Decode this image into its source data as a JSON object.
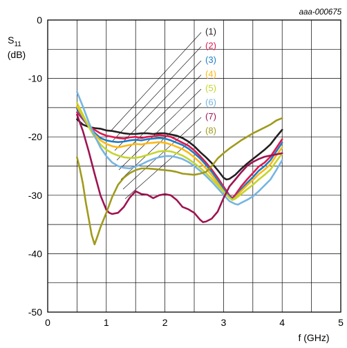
{
  "chart_data": {
    "type": "line",
    "id_label": "aaa-000675",
    "xlabel": "f (GHz)",
    "ylabel_main": "S",
    "ylabel_sub": "11",
    "ylabel_unit": "(dB)",
    "xlim": [
      0,
      5
    ],
    "ylim": [
      -50,
      0
    ],
    "x_ticks": [
      0,
      1,
      2,
      3,
      4,
      5
    ],
    "y_ticks": [
      0,
      -10,
      -20,
      -30,
      -40,
      -50
    ],
    "x_tick_labels": [
      "0",
      "1",
      "2",
      "3",
      "4",
      "5"
    ],
    "y_tick_labels": [
      "0",
      "-10",
      "-20",
      "-30",
      "-40",
      "-50"
    ],
    "grid": true,
    "series": [
      {
        "name": "(1)",
        "color": "#231f20",
        "points": [
          [
            0.5,
            -17.0
          ],
          [
            0.6,
            -17.9
          ],
          [
            0.7,
            -18.3
          ],
          [
            0.8,
            -18.5
          ],
          [
            0.9,
            -18.6
          ],
          [
            1.0,
            -18.9
          ],
          [
            1.1,
            -19.0
          ],
          [
            1.2,
            -19.2
          ],
          [
            1.3,
            -19.4
          ],
          [
            1.4,
            -19.5
          ],
          [
            1.5,
            -19.5
          ],
          [
            1.6,
            -19.4
          ],
          [
            1.7,
            -19.4
          ],
          [
            1.8,
            -19.5
          ],
          [
            1.9,
            -19.4
          ],
          [
            2.0,
            -19.4
          ],
          [
            2.1,
            -19.6
          ],
          [
            2.2,
            -19.8
          ],
          [
            2.3,
            -20.2
          ],
          [
            2.4,
            -20.8
          ],
          [
            2.5,
            -21.6
          ],
          [
            2.6,
            -22.6
          ],
          [
            2.7,
            -23.5
          ],
          [
            2.8,
            -24.5
          ],
          [
            2.9,
            -25.7
          ],
          [
            3.0,
            -27.0
          ],
          [
            3.05,
            -27.3
          ],
          [
            3.1,
            -27.2
          ],
          [
            3.2,
            -26.5
          ],
          [
            3.3,
            -25.5
          ],
          [
            3.4,
            -24.6
          ],
          [
            3.5,
            -23.8
          ],
          [
            3.6,
            -23.0
          ],
          [
            3.7,
            -22.2
          ],
          [
            3.8,
            -21.3
          ],
          [
            3.9,
            -20.0
          ],
          [
            4.0,
            -18.8
          ]
        ]
      },
      {
        "name": "(2)",
        "color": "#e0184f",
        "points": [
          [
            0.5,
            -15.8
          ],
          [
            0.6,
            -17.0
          ],
          [
            0.7,
            -18.2
          ],
          [
            0.8,
            -18.8
          ],
          [
            0.9,
            -19.4
          ],
          [
            1.0,
            -19.8
          ],
          [
            1.1,
            -20.0
          ],
          [
            1.2,
            -20.2
          ],
          [
            1.3,
            -20.3
          ],
          [
            1.4,
            -20.1
          ],
          [
            1.5,
            -20.0
          ],
          [
            1.6,
            -20.2
          ],
          [
            1.7,
            -20.0
          ],
          [
            1.8,
            -19.9
          ],
          [
            1.9,
            -19.7
          ],
          [
            2.0,
            -19.8
          ],
          [
            2.1,
            -20.0
          ],
          [
            2.2,
            -20.5
          ],
          [
            2.3,
            -21.0
          ],
          [
            2.4,
            -21.5
          ],
          [
            2.5,
            -22.3
          ],
          [
            2.6,
            -23.3
          ],
          [
            2.7,
            -24.4
          ],
          [
            2.8,
            -25.6
          ],
          [
            2.9,
            -27.0
          ],
          [
            3.0,
            -28.5
          ],
          [
            3.1,
            -30.0
          ],
          [
            3.15,
            -30.5
          ],
          [
            3.2,
            -29.9
          ],
          [
            3.3,
            -28.5
          ],
          [
            3.4,
            -27.3
          ],
          [
            3.5,
            -26.2
          ],
          [
            3.6,
            -25.1
          ],
          [
            3.7,
            -24.4
          ],
          [
            3.8,
            -23.4
          ],
          [
            3.9,
            -21.9
          ],
          [
            4.0,
            -20.4
          ]
        ]
      },
      {
        "name": "(3)",
        "color": "#1e7ec2",
        "points": [
          [
            0.5,
            -15.2
          ],
          [
            0.6,
            -16.8
          ],
          [
            0.7,
            -18.2
          ],
          [
            0.8,
            -19.3
          ],
          [
            0.9,
            -20.2
          ],
          [
            1.0,
            -20.6
          ],
          [
            1.1,
            -20.8
          ],
          [
            1.2,
            -20.9
          ],
          [
            1.3,
            -20.8
          ],
          [
            1.4,
            -20.6
          ],
          [
            1.5,
            -20.5
          ],
          [
            1.6,
            -20.6
          ],
          [
            1.7,
            -20.4
          ],
          [
            1.8,
            -20.3
          ],
          [
            1.9,
            -20.2
          ],
          [
            2.0,
            -20.3
          ],
          [
            2.1,
            -20.6
          ],
          [
            2.2,
            -21.0
          ],
          [
            2.3,
            -21.4
          ],
          [
            2.4,
            -22.0
          ],
          [
            2.5,
            -22.8
          ],
          [
            2.6,
            -23.7
          ],
          [
            2.7,
            -24.8
          ],
          [
            2.8,
            -26.0
          ],
          [
            2.9,
            -27.4
          ],
          [
            3.0,
            -28.9
          ],
          [
            3.1,
            -30.2
          ],
          [
            3.15,
            -30.7
          ],
          [
            3.2,
            -30.3
          ],
          [
            3.3,
            -29.0
          ],
          [
            3.4,
            -27.9
          ],
          [
            3.5,
            -26.9
          ],
          [
            3.6,
            -25.8
          ],
          [
            3.7,
            -25.0
          ],
          [
            3.8,
            -24.0
          ],
          [
            3.9,
            -22.5
          ],
          [
            4.0,
            -21.0
          ]
        ]
      },
      {
        "name": "(4)",
        "color": "#fdb913",
        "points": [
          [
            0.5,
            -14.8
          ],
          [
            0.6,
            -16.5
          ],
          [
            0.7,
            -18.2
          ],
          [
            0.8,
            -19.6
          ],
          [
            0.9,
            -20.6
          ],
          [
            1.0,
            -21.2
          ],
          [
            1.1,
            -21.6
          ],
          [
            1.2,
            -21.8
          ],
          [
            1.3,
            -21.6
          ],
          [
            1.4,
            -21.4
          ],
          [
            1.5,
            -21.2
          ],
          [
            1.6,
            -21.3
          ],
          [
            1.7,
            -21.1
          ],
          [
            1.8,
            -21.0
          ],
          [
            1.9,
            -20.9
          ],
          [
            2.0,
            -21.0
          ],
          [
            2.1,
            -21.3
          ],
          [
            2.2,
            -21.7
          ],
          [
            2.3,
            -22.1
          ],
          [
            2.4,
            -22.7
          ],
          [
            2.5,
            -23.5
          ],
          [
            2.6,
            -24.4
          ],
          [
            2.7,
            -25.4
          ],
          [
            2.8,
            -26.6
          ],
          [
            2.9,
            -27.9
          ],
          [
            3.0,
            -29.3
          ],
          [
            3.1,
            -30.4
          ],
          [
            3.15,
            -30.8
          ],
          [
            3.2,
            -30.4
          ],
          [
            3.3,
            -29.3
          ],
          [
            3.4,
            -28.3
          ],
          [
            3.5,
            -27.4
          ],
          [
            3.6,
            -26.4
          ],
          [
            3.7,
            -25.6
          ],
          [
            3.8,
            -24.7
          ],
          [
            3.9,
            -23.2
          ],
          [
            4.0,
            -21.8
          ]
        ]
      },
      {
        "name": "(5)",
        "color": "#c4d52b",
        "points": [
          [
            0.5,
            -14.2
          ],
          [
            0.6,
            -16.2
          ],
          [
            0.7,
            -18.3
          ],
          [
            0.8,
            -20.0
          ],
          [
            0.9,
            -21.3
          ],
          [
            1.0,
            -22.2
          ],
          [
            1.1,
            -22.8
          ],
          [
            1.2,
            -23.2
          ],
          [
            1.3,
            -23.5
          ],
          [
            1.4,
            -23.6
          ],
          [
            1.5,
            -23.6
          ],
          [
            1.6,
            -23.4
          ],
          [
            1.7,
            -23.1
          ],
          [
            1.8,
            -22.8
          ],
          [
            1.9,
            -22.5
          ],
          [
            2.0,
            -22.4
          ],
          [
            2.1,
            -22.5
          ],
          [
            2.2,
            -22.8
          ],
          [
            2.3,
            -23.2
          ],
          [
            2.4,
            -23.8
          ],
          [
            2.5,
            -24.5
          ],
          [
            2.6,
            -25.3
          ],
          [
            2.7,
            -26.2
          ],
          [
            2.8,
            -27.2
          ],
          [
            2.9,
            -28.3
          ],
          [
            3.0,
            -29.4
          ],
          [
            3.1,
            -30.4
          ],
          [
            3.15,
            -30.8
          ],
          [
            3.2,
            -30.6
          ],
          [
            3.3,
            -29.8
          ],
          [
            3.4,
            -29.0
          ],
          [
            3.5,
            -28.2
          ],
          [
            3.6,
            -27.3
          ],
          [
            3.7,
            -26.5
          ],
          [
            3.8,
            -25.6
          ],
          [
            3.9,
            -24.2
          ],
          [
            4.0,
            -22.8
          ]
        ]
      },
      {
        "name": "(6)",
        "color": "#76b5e2",
        "points": [
          [
            0.5,
            -12.3
          ],
          [
            0.6,
            -14.8
          ],
          [
            0.7,
            -17.5
          ],
          [
            0.8,
            -19.8
          ],
          [
            0.9,
            -21.8
          ],
          [
            1.0,
            -23.3
          ],
          [
            1.1,
            -24.4
          ],
          [
            1.2,
            -25.0
          ],
          [
            1.3,
            -25.3
          ],
          [
            1.4,
            -25.4
          ],
          [
            1.5,
            -25.1
          ],
          [
            1.6,
            -24.7
          ],
          [
            1.7,
            -24.2
          ],
          [
            1.8,
            -23.8
          ],
          [
            1.9,
            -23.5
          ],
          [
            2.0,
            -23.3
          ],
          [
            2.1,
            -23.3
          ],
          [
            2.2,
            -23.5
          ],
          [
            2.3,
            -23.8
          ],
          [
            2.4,
            -24.3
          ],
          [
            2.5,
            -25.0
          ],
          [
            2.6,
            -25.8
          ],
          [
            2.7,
            -26.7
          ],
          [
            2.8,
            -27.7
          ],
          [
            2.9,
            -28.8
          ],
          [
            3.0,
            -29.9
          ],
          [
            3.1,
            -31.0
          ],
          [
            3.2,
            -31.5
          ],
          [
            3.25,
            -31.6
          ],
          [
            3.3,
            -31.3
          ],
          [
            3.4,
            -30.8
          ],
          [
            3.5,
            -30.2
          ],
          [
            3.6,
            -29.3
          ],
          [
            3.7,
            -28.3
          ],
          [
            3.8,
            -27.3
          ],
          [
            3.9,
            -25.7
          ],
          [
            4.0,
            -24.0
          ]
        ]
      },
      {
        "name": "(7)",
        "color": "#9d1451",
        "points": [
          [
            0.5,
            -16.2
          ],
          [
            0.6,
            -19.0
          ],
          [
            0.7,
            -22.5
          ],
          [
            0.8,
            -26.3
          ],
          [
            0.9,
            -30.0
          ],
          [
            1.0,
            -32.5
          ],
          [
            1.05,
            -33.0
          ],
          [
            1.1,
            -33.2
          ],
          [
            1.2,
            -33.0
          ],
          [
            1.3,
            -32.0
          ],
          [
            1.4,
            -30.4
          ],
          [
            1.5,
            -29.3
          ],
          [
            1.6,
            -29.8
          ],
          [
            1.7,
            -29.9
          ],
          [
            1.8,
            -30.5
          ],
          [
            1.9,
            -30.0
          ],
          [
            2.0,
            -29.8
          ],
          [
            2.1,
            -30.0
          ],
          [
            2.2,
            -30.8
          ],
          [
            2.3,
            -32.0
          ],
          [
            2.4,
            -32.4
          ],
          [
            2.5,
            -33.0
          ],
          [
            2.6,
            -34.2
          ],
          [
            2.65,
            -34.6
          ],
          [
            2.7,
            -34.5
          ],
          [
            2.8,
            -34.0
          ],
          [
            2.9,
            -32.8
          ],
          [
            3.0,
            -30.5
          ],
          [
            3.1,
            -28.5
          ],
          [
            3.2,
            -27.3
          ],
          [
            3.3,
            -26.1
          ],
          [
            3.4,
            -25.0
          ],
          [
            3.5,
            -24.3
          ],
          [
            3.6,
            -23.8
          ],
          [
            3.7,
            -23.4
          ],
          [
            3.8,
            -23.2
          ],
          [
            3.9,
            -23.0
          ],
          [
            4.0,
            -22.8
          ]
        ]
      },
      {
        "name": "(8)",
        "color": "#a09a1c",
        "points": [
          [
            0.5,
            -23.5
          ],
          [
            0.55,
            -25.5
          ],
          [
            0.6,
            -28.0
          ],
          [
            0.65,
            -31.2
          ],
          [
            0.7,
            -34.0
          ],
          [
            0.75,
            -36.8
          ],
          [
            0.8,
            -38.4
          ],
          [
            0.85,
            -37.0
          ],
          [
            0.9,
            -35.5
          ],
          [
            1.0,
            -33.0
          ],
          [
            1.1,
            -30.3
          ],
          [
            1.2,
            -28.2
          ],
          [
            1.3,
            -27.0
          ],
          [
            1.4,
            -26.2
          ],
          [
            1.5,
            -25.7
          ],
          [
            1.6,
            -25.4
          ],
          [
            1.7,
            -25.4
          ],
          [
            1.8,
            -25.5
          ],
          [
            1.9,
            -25.6
          ],
          [
            2.0,
            -25.7
          ],
          [
            2.1,
            -25.8
          ],
          [
            2.2,
            -26.0
          ],
          [
            2.3,
            -26.3
          ],
          [
            2.4,
            -26.4
          ],
          [
            2.5,
            -26.5
          ],
          [
            2.6,
            -26.3
          ],
          [
            2.7,
            -26.0
          ],
          [
            2.8,
            -25.0
          ],
          [
            2.9,
            -23.7
          ],
          [
            3.0,
            -22.8
          ],
          [
            3.1,
            -22.0
          ],
          [
            3.2,
            -21.3
          ],
          [
            3.3,
            -20.6
          ],
          [
            3.4,
            -20.0
          ],
          [
            3.5,
            -19.4
          ],
          [
            3.6,
            -18.9
          ],
          [
            3.7,
            -18.4
          ],
          [
            3.8,
            -17.9
          ],
          [
            3.9,
            -17.2
          ],
          [
            4.0,
            -16.8
          ]
        ]
      }
    ]
  }
}
